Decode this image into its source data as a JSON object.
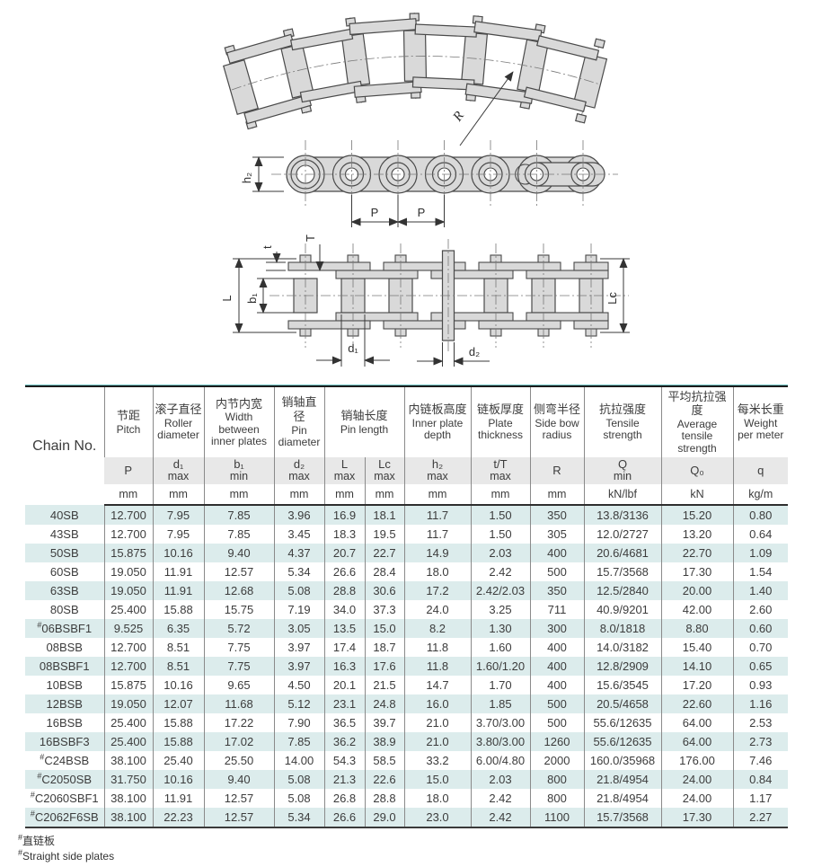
{
  "diagram": {
    "labels": {
      "r": "R",
      "h2": "h₂",
      "p1": "P",
      "p2": "P",
      "t": "t",
      "T": "T",
      "L": "L",
      "b1": "b₁",
      "lc": "Lc",
      "d1": "d₁",
      "d2": "d₂"
    }
  },
  "table": {
    "header": {
      "chain_no": "Chain No.",
      "groups": [
        {
          "cn": "节距",
          "en": "Pitch"
        },
        {
          "cn": "滚子直径",
          "en": "Roller diameter"
        },
        {
          "cn": "内节内宽",
          "en": "Width between inner plates"
        },
        {
          "cn": "销轴直径",
          "en": "Pin diameter"
        },
        {
          "cn": "销轴长度",
          "en": "Pin length"
        },
        {
          "cn": "内链板高度",
          "en": "Inner plate depth"
        },
        {
          "cn": "链板厚度",
          "en": "Plate thickness"
        },
        {
          "cn": "侧弯半径",
          "en": "Side bow radius"
        },
        {
          "cn": "抗拉强度",
          "en": "Tensile strength"
        },
        {
          "cn": "平均抗拉强度",
          "en": "Average tensile strength"
        },
        {
          "cn": "每米长重",
          "en": "Weight per meter"
        }
      ],
      "symbols": [
        {
          "main": "P",
          "sub": ""
        },
        {
          "main": "d₁",
          "sub": "max"
        },
        {
          "main": "b₁",
          "sub": "min"
        },
        {
          "main": "d₂",
          "sub": "max"
        },
        {
          "main": "L",
          "sub": "max"
        },
        {
          "main": "Lc",
          "sub": "max"
        },
        {
          "main": "h₂",
          "sub": "max"
        },
        {
          "main": "t/T",
          "sub": "max"
        },
        {
          "main": "R",
          "sub": ""
        },
        {
          "main": "Q",
          "sub": "min"
        },
        {
          "main": "Q₀",
          "sub": ""
        },
        {
          "main": "q",
          "sub": ""
        }
      ],
      "units": [
        "mm",
        "mm",
        "mm",
        "mm",
        "mm",
        "mm",
        "mm",
        "mm",
        "mm",
        "kN/lbf",
        "kN",
        "kg/m"
      ]
    },
    "rows": [
      {
        "name": "40SB",
        "values": [
          "12.700",
          "7.95",
          "7.85",
          "3.96",
          "16.9",
          "18.1",
          "11.7",
          "1.50",
          "350",
          "13.8/3136",
          "15.20",
          "0.80"
        ]
      },
      {
        "name": "43SB",
        "values": [
          "12.700",
          "7.95",
          "7.85",
          "3.45",
          "18.3",
          "19.5",
          "11.7",
          "1.50",
          "305",
          "12.0/2727",
          "13.20",
          "0.64"
        ]
      },
      {
        "name": "50SB",
        "values": [
          "15.875",
          "10.16",
          "9.40",
          "4.37",
          "20.7",
          "22.7",
          "14.9",
          "2.03",
          "400",
          "20.6/4681",
          "22.70",
          "1.09"
        ]
      },
      {
        "name": "60SB",
        "values": [
          "19.050",
          "11.91",
          "12.57",
          "5.34",
          "26.6",
          "28.4",
          "18.0",
          "2.42",
          "500",
          "15.7/3568",
          "17.30",
          "1.54"
        ]
      },
      {
        "name": "63SB",
        "values": [
          "19.050",
          "11.91",
          "12.68",
          "5.08",
          "28.8",
          "30.6",
          "17.2",
          "2.42/2.03",
          "350",
          "12.5/2840",
          "20.00",
          "1.40"
        ]
      },
      {
        "name": "80SB",
        "values": [
          "25.400",
          "15.88",
          "15.75",
          "7.19",
          "34.0",
          "37.3",
          "24.0",
          "3.25",
          "711",
          "40.9/9201",
          "42.00",
          "2.60"
        ]
      },
      {
        "name": "#06BSBF1",
        "values": [
          "9.525",
          "6.35",
          "5.72",
          "3.05",
          "13.5",
          "15.0",
          "8.2",
          "1.30",
          "300",
          "8.0/1818",
          "8.80",
          "0.60"
        ]
      },
      {
        "name": "08BSB",
        "values": [
          "12.700",
          "8.51",
          "7.75",
          "3.97",
          "17.4",
          "18.7",
          "11.8",
          "1.60",
          "400",
          "14.0/3182",
          "15.40",
          "0.70"
        ]
      },
      {
        "name": "08BSBF1",
        "values": [
          "12.700",
          "8.51",
          "7.75",
          "3.97",
          "16.3",
          "17.6",
          "11.8",
          "1.60/1.20",
          "400",
          "12.8/2909",
          "14.10",
          "0.65"
        ]
      },
      {
        "name": "10BSB",
        "values": [
          "15.875",
          "10.16",
          "9.65",
          "4.50",
          "20.1",
          "21.5",
          "14.7",
          "1.70",
          "400",
          "15.6/3545",
          "17.20",
          "0.93"
        ]
      },
      {
        "name": "12BSB",
        "values": [
          "19.050",
          "12.07",
          "11.68",
          "5.12",
          "23.1",
          "24.8",
          "16.0",
          "1.85",
          "500",
          "20.5/4658",
          "22.60",
          "1.16"
        ]
      },
      {
        "name": "16BSB",
        "values": [
          "25.400",
          "15.88",
          "17.22",
          "7.90",
          "36.5",
          "39.7",
          "21.0",
          "3.70/3.00",
          "500",
          "55.6/12635",
          "64.00",
          "2.53"
        ]
      },
      {
        "name": "16BSBF3",
        "values": [
          "25.400",
          "15.88",
          "17.02",
          "7.85",
          "36.2",
          "38.9",
          "21.0",
          "3.80/3.00",
          "1260",
          "55.6/12635",
          "64.00",
          "2.73"
        ]
      },
      {
        "name": "#C24BSB",
        "values": [
          "38.100",
          "25.40",
          "25.50",
          "14.00",
          "54.3",
          "58.5",
          "33.2",
          "6.00/4.80",
          "2000",
          "160.0/35968",
          "176.00",
          "7.46"
        ]
      },
      {
        "name": "#C2050SB",
        "values": [
          "31.750",
          "10.16",
          "9.40",
          "5.08",
          "21.3",
          "22.6",
          "15.0",
          "2.03",
          "800",
          "21.8/4954",
          "24.00",
          "0.84"
        ]
      },
      {
        "name": "#C2060SBF1",
        "values": [
          "38.100",
          "11.91",
          "12.57",
          "5.08",
          "26.8",
          "28.8",
          "18.0",
          "2.42",
          "800",
          "21.8/4954",
          "24.00",
          "1.17"
        ]
      },
      {
        "name": "#C2062F6SB",
        "values": [
          "38.100",
          "22.23",
          "12.57",
          "5.34",
          "26.6",
          "29.0",
          "23.0",
          "2.42",
          "1100",
          "15.7/3568",
          "17.30",
          "2.27"
        ]
      }
    ]
  },
  "footnotes": {
    "marker": "#",
    "cn": "直链板",
    "en": "Straight side plates"
  }
}
